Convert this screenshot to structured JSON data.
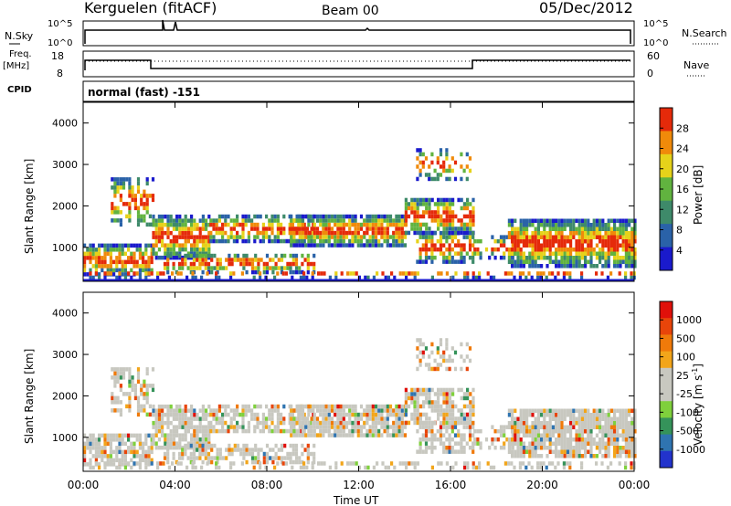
{
  "header": {
    "station": "Kerguelen (fitACF)",
    "beam": "Beam 00",
    "date": "05/Dec/2012"
  },
  "top_panels": {
    "nsky_label": "N.Sky",
    "nsky_ticks": [
      "10^5",
      "10^0"
    ],
    "nsearch_label": "N.Search",
    "nsearch_ticks": [
      "10^5",
      "10^0"
    ],
    "freq_label": "Freq.",
    "freq_unit": "[MHz]",
    "freq_ticks": [
      "18",
      "8"
    ],
    "nave_label": "Nave",
    "nave_ticks": [
      "60",
      "0"
    ],
    "cpid_label": "CPID",
    "cpid_value": "normal (fast) -151"
  },
  "chart_data": [
    {
      "type": "heatmap",
      "name": "power",
      "ylabel": "Slant Range [km]",
      "ylim": [
        180,
        4500
      ],
      "yticks": [
        "1000",
        "2000",
        "3000",
        "4000"
      ],
      "colorbar_label": "Power [dB]",
      "colorbar_ticks": [
        "4",
        "8",
        "12",
        "16",
        "20",
        "24",
        "28"
      ],
      "colors": [
        "#1a1acc",
        "#2a62a8",
        "#3e8a6a",
        "#61b33f",
        "#e6d21a",
        "#f08a0a",
        "#e52a0a"
      ]
    },
    {
      "type": "heatmap",
      "name": "velocity",
      "ylabel": "Slant Range [km]",
      "ylim": [
        180,
        4500
      ],
      "yticks": [
        "1000",
        "2000",
        "3000",
        "4000"
      ],
      "colorbar_label": "Velocity [m s",
      "colorbar_label_sup": "-1",
      "colorbar_label_close": "]",
      "colorbar_ticks": [
        "1000",
        "500",
        "100",
        "25",
        "-25",
        "-100",
        "-500",
        "-1000"
      ],
      "colors": [
        "#2233cc",
        "#2f74b0",
        "#35935a",
        "#7fd03c",
        "#c8c8c0",
        "#c8c8c0",
        "#f2a51a",
        "#f07a0a",
        "#e8450a",
        "#e0100a"
      ]
    }
  ],
  "xaxis": {
    "label": "Time UT",
    "ticks": [
      "00:00",
      "04:00",
      "08:00",
      "12:00",
      "16:00",
      "20:00",
      "00:00"
    ]
  }
}
